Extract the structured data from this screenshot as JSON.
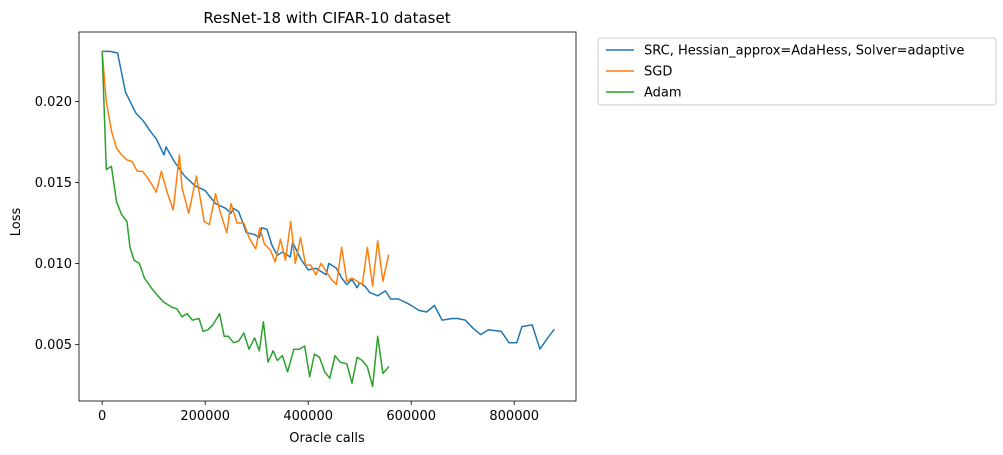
{
  "chart_data": {
    "type": "line",
    "title": "ResNet-18 with CIFAR-10 dataset",
    "xlabel": "Oracle calls",
    "ylabel": "Loss",
    "xlim": [
      -45000,
      920000
    ],
    "ylim": [
      0.0015,
      0.0243
    ],
    "x_ticks": [
      0,
      200000,
      400000,
      600000,
      800000
    ],
    "x_tick_labels": [
      "0",
      "200000",
      "400000",
      "600000",
      "800000"
    ],
    "y_ticks": [
      0.005,
      0.01,
      0.015,
      0.02
    ],
    "y_tick_labels": [
      "0.005",
      "0.010",
      "0.015",
      "0.020"
    ],
    "grid": false,
    "legend_position": "outside-top-right",
    "series": [
      {
        "name": "SRC, Hessian_approx=AdaHess, Solver=adaptive",
        "color": "#1f77b4",
        "points": [
          [
            0,
            0.0231
          ],
          [
            15000,
            0.0231
          ],
          [
            30000,
            0.023
          ],
          [
            45000,
            0.0206
          ],
          [
            65000,
            0.0193
          ],
          [
            80000,
            0.0188
          ],
          [
            95000,
            0.0181
          ],
          [
            105000,
            0.0177
          ],
          [
            120000,
            0.0167
          ],
          [
            124000,
            0.0172
          ],
          [
            140000,
            0.0163
          ],
          [
            160000,
            0.0154
          ],
          [
            180000,
            0.0148
          ],
          [
            200000,
            0.0145
          ],
          [
            220000,
            0.0137
          ],
          [
            240000,
            0.0134
          ],
          [
            250000,
            0.0131
          ],
          [
            255000,
            0.0134
          ],
          [
            265000,
            0.0132
          ],
          [
            280000,
            0.0119
          ],
          [
            295000,
            0.0118
          ],
          [
            305000,
            0.0116
          ],
          [
            310000,
            0.0122
          ],
          [
            320000,
            0.0121
          ],
          [
            330000,
            0.0111
          ],
          [
            340000,
            0.0105
          ],
          [
            350000,
            0.0107
          ],
          [
            365000,
            0.0104
          ],
          [
            370000,
            0.0113
          ],
          [
            385000,
            0.0103
          ],
          [
            400000,
            0.0096
          ],
          [
            415000,
            0.0097
          ],
          [
            425000,
            0.0095
          ],
          [
            435000,
            0.0093
          ],
          [
            440000,
            0.01
          ],
          [
            455000,
            0.0097
          ],
          [
            465000,
            0.0091
          ],
          [
            475000,
            0.0087
          ],
          [
            485000,
            0.009
          ],
          [
            495000,
            0.0085
          ],
          [
            500000,
            0.0088
          ],
          [
            510000,
            0.0086
          ],
          [
            520000,
            0.0082
          ],
          [
            535000,
            0.008
          ],
          [
            550000,
            0.0083
          ],
          [
            560000,
            0.0078
          ],
          [
            575000,
            0.0078
          ],
          [
            595000,
            0.0075
          ],
          [
            615000,
            0.0071
          ],
          [
            630000,
            0.007
          ],
          [
            645000,
            0.0074
          ],
          [
            660000,
            0.0065
          ],
          [
            680000,
            0.0066
          ],
          [
            690000,
            0.0066
          ],
          [
            705000,
            0.0065
          ],
          [
            720000,
            0.006
          ],
          [
            735000,
            0.0056
          ],
          [
            750000,
            0.0059
          ],
          [
            775000,
            0.0058
          ],
          [
            790000,
            0.0051
          ],
          [
            805000,
            0.0051
          ],
          [
            815000,
            0.0061
          ],
          [
            835000,
            0.0062
          ],
          [
            850000,
            0.0047
          ],
          [
            865000,
            0.0054
          ],
          [
            877000,
            0.0059
          ]
        ]
      },
      {
        "name": "SGD",
        "color": "#ff7f0e",
        "points": [
          [
            0,
            0.0231
          ],
          [
            8000,
            0.02
          ],
          [
            18000,
            0.0182
          ],
          [
            28000,
            0.0171
          ],
          [
            38000,
            0.0167
          ],
          [
            48000,
            0.0164
          ],
          [
            58000,
            0.0163
          ],
          [
            68000,
            0.0157
          ],
          [
            78000,
            0.0157
          ],
          [
            88000,
            0.0153
          ],
          [
            98000,
            0.0148
          ],
          [
            105000,
            0.0144
          ],
          [
            115000,
            0.0157
          ],
          [
            125000,
            0.0145
          ],
          [
            138000,
            0.0133
          ],
          [
            150000,
            0.0167
          ],
          [
            155000,
            0.0147
          ],
          [
            168000,
            0.0131
          ],
          [
            183000,
            0.0154
          ],
          [
            198000,
            0.0126
          ],
          [
            208000,
            0.0124
          ],
          [
            220000,
            0.0143
          ],
          [
            230000,
            0.0131
          ],
          [
            242000,
            0.0119
          ],
          [
            250000,
            0.0137
          ],
          [
            262000,
            0.0125
          ],
          [
            275000,
            0.0125
          ],
          [
            285000,
            0.0116
          ],
          [
            298000,
            0.0109
          ],
          [
            306000,
            0.0122
          ],
          [
            315000,
            0.0112
          ],
          [
            327000,
            0.0108
          ],
          [
            336000,
            0.0101
          ],
          [
            346000,
            0.0115
          ],
          [
            356000,
            0.0102
          ],
          [
            366000,
            0.0126
          ],
          [
            375000,
            0.01
          ],
          [
            385000,
            0.0116
          ],
          [
            395000,
            0.0099
          ],
          [
            405000,
            0.0099
          ],
          [
            415000,
            0.0093
          ],
          [
            425000,
            0.01
          ],
          [
            435000,
            0.0095
          ],
          [
            445000,
            0.009
          ],
          [
            455000,
            0.0087
          ],
          [
            465000,
            0.011
          ],
          [
            475000,
            0.0089
          ],
          [
            485000,
            0.0091
          ],
          [
            495000,
            0.0089
          ],
          [
            505000,
            0.0087
          ],
          [
            515000,
            0.011
          ],
          [
            525000,
            0.0086
          ],
          [
            535000,
            0.0114
          ],
          [
            545000,
            0.0089
          ],
          [
            556000,
            0.0105
          ]
        ]
      },
      {
        "name": "Adam",
        "color": "#2ca02c",
        "points": [
          [
            0,
            0.023
          ],
          [
            8000,
            0.0158
          ],
          [
            18000,
            0.016
          ],
          [
            28000,
            0.0138
          ],
          [
            38000,
            0.013
          ],
          [
            48000,
            0.0126
          ],
          [
            54000,
            0.011
          ],
          [
            62000,
            0.0102
          ],
          [
            72000,
            0.01
          ],
          [
            82000,
            0.0091
          ],
          [
            95000,
            0.0085
          ],
          [
            108000,
            0.008
          ],
          [
            120000,
            0.0076
          ],
          [
            135000,
            0.0073
          ],
          [
            145000,
            0.0072
          ],
          [
            155000,
            0.0067
          ],
          [
            165000,
            0.0069
          ],
          [
            175000,
            0.0065
          ],
          [
            188000,
            0.0066
          ],
          [
            196000,
            0.0058
          ],
          [
            205000,
            0.0059
          ],
          [
            215000,
            0.0062
          ],
          [
            228000,
            0.0069
          ],
          [
            237000,
            0.0055
          ],
          [
            245000,
            0.0055
          ],
          [
            255000,
            0.0051
          ],
          [
            265000,
            0.0052
          ],
          [
            275000,
            0.0057
          ],
          [
            285000,
            0.0047
          ],
          [
            296000,
            0.0054
          ],
          [
            305000,
            0.0046
          ],
          [
            313000,
            0.0064
          ],
          [
            322000,
            0.0039
          ],
          [
            332000,
            0.0046
          ],
          [
            340000,
            0.004
          ],
          [
            350000,
            0.0043
          ],
          [
            360000,
            0.0033
          ],
          [
            372000,
            0.0047
          ],
          [
            383000,
            0.0047
          ],
          [
            393000,
            0.0049
          ],
          [
            403000,
            0.003
          ],
          [
            412000,
            0.0044
          ],
          [
            422000,
            0.0042
          ],
          [
            432000,
            0.0033
          ],
          [
            442000,
            0.0029
          ],
          [
            452000,
            0.0043
          ],
          [
            462000,
            0.0039
          ],
          [
            475000,
            0.0038
          ],
          [
            485000,
            0.0026
          ],
          [
            495000,
            0.0042
          ],
          [
            505000,
            0.004
          ],
          [
            515000,
            0.0036
          ],
          [
            525000,
            0.0024
          ],
          [
            535000,
            0.0055
          ],
          [
            545000,
            0.0032
          ],
          [
            556000,
            0.0036
          ]
        ]
      }
    ]
  }
}
